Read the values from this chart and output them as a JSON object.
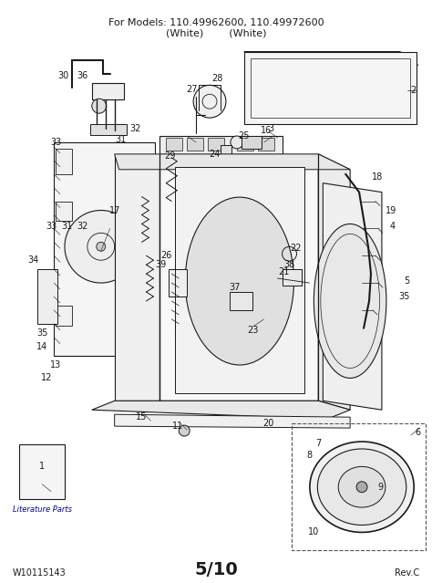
{
  "title_line1": "For Models: 110.49962600, 110.49972600",
  "title_line2": "(White)        (White)",
  "footer_left": "W10115143",
  "footer_center": "5/10",
  "footer_right": "Rev.C",
  "bg": "#ffffff",
  "lc": "#1a1a1a",
  "literature_label": "Literature Parts",
  "fig_width": 4.74,
  "fig_height": 6.39,
  "dpi": 100
}
